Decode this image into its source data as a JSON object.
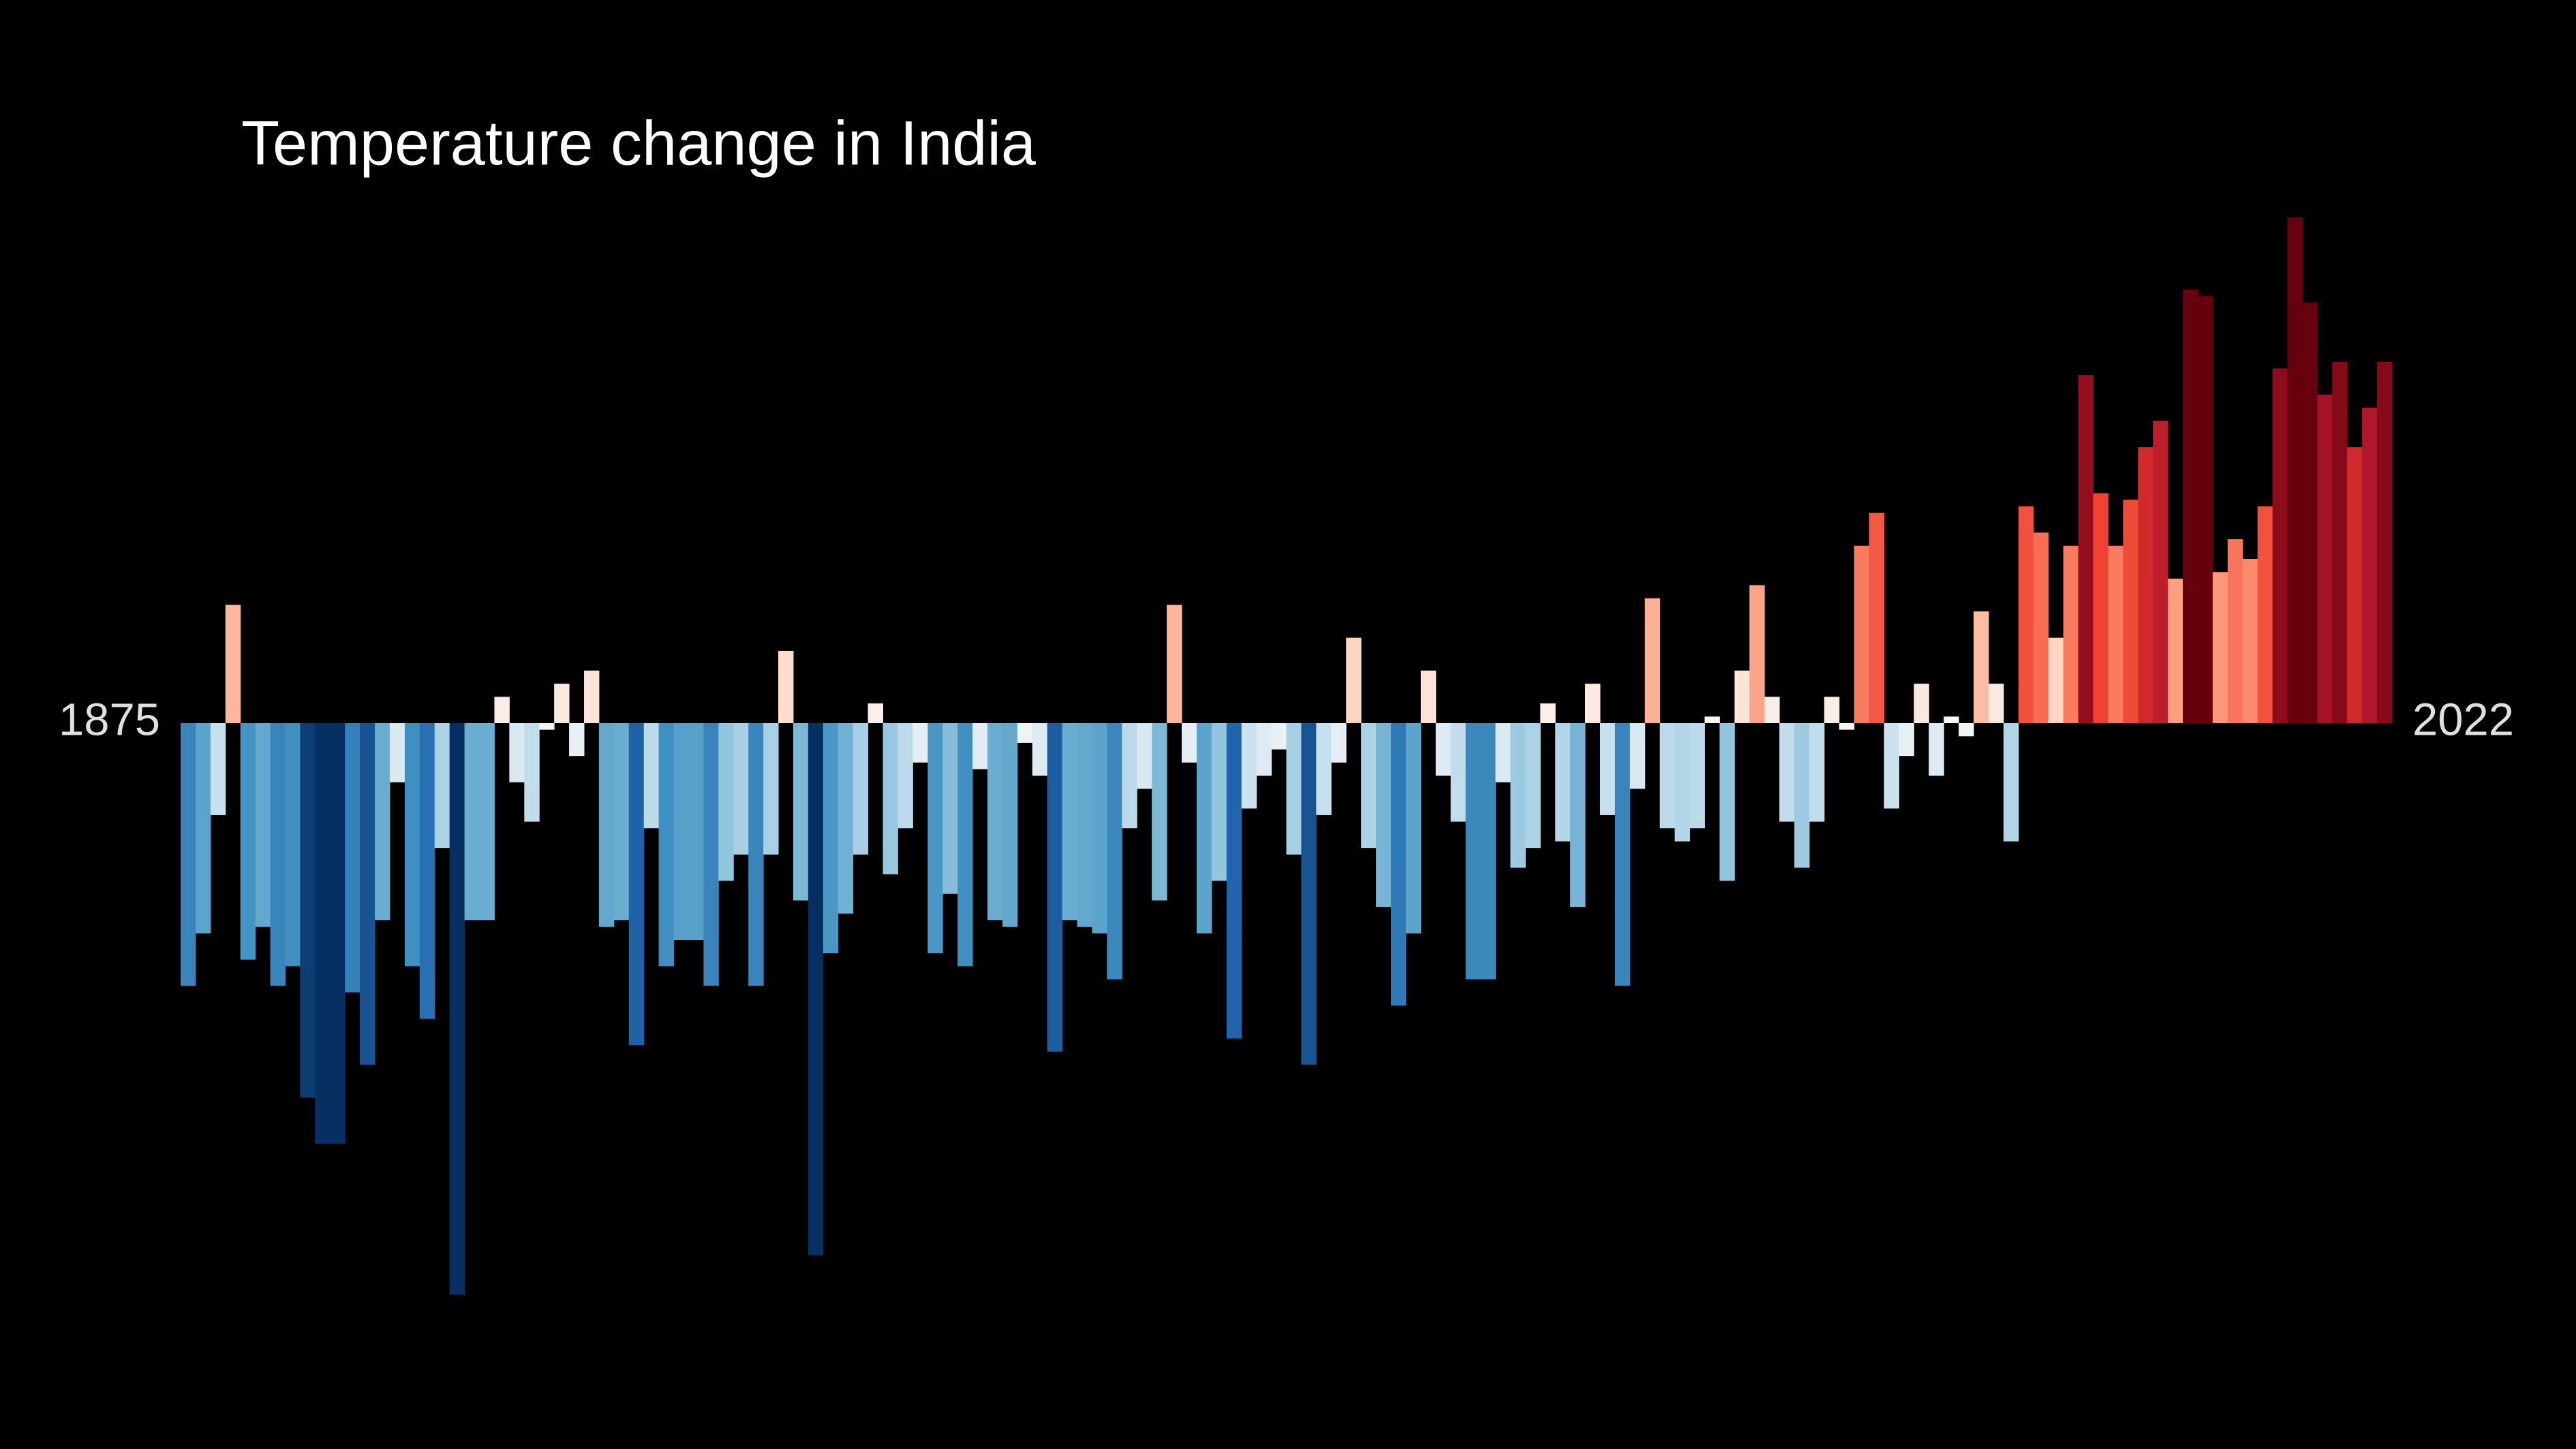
{
  "chart_data": {
    "type": "bar",
    "title": "Temperature change in India",
    "categories": [
      "1875",
      null,
      null,
      null,
      null,
      null,
      null,
      null,
      null,
      null,
      null,
      null,
      null,
      null,
      null,
      null,
      null,
      null,
      null,
      null,
      null,
      null,
      null,
      null,
      null,
      null,
      null,
      null,
      null,
      null,
      null,
      null,
      null,
      null,
      null,
      null,
      null,
      null,
      null,
      null,
      null,
      null,
      null,
      null,
      null,
      null,
      null,
      null,
      null,
      null,
      null,
      null,
      null,
      null,
      null,
      null,
      null,
      null,
      null,
      null,
      null,
      null,
      null,
      null,
      null,
      null,
      null,
      null,
      null,
      null,
      null,
      null,
      null,
      null,
      null,
      null,
      null,
      null,
      null,
      null,
      null,
      null,
      null,
      null,
      null,
      null,
      null,
      null,
      null,
      null,
      null,
      null,
      null,
      null,
      null,
      null,
      null,
      null,
      null,
      null,
      null,
      null,
      null,
      null,
      null,
      null,
      null,
      null,
      null,
      null,
      null,
      null,
      null,
      null,
      null,
      null,
      null,
      null,
      null,
      null,
      null,
      null,
      null,
      null,
      null,
      null,
      null,
      null,
      null,
      null,
      null,
      null,
      null,
      null,
      null,
      null,
      null,
      null,
      null,
      null,
      null,
      null,
      null,
      null,
      null,
      null,
      null,
      "2022"
    ],
    "values": [
      -0.4,
      -0.32,
      -0.14,
      0.18,
      -0.36,
      -0.31,
      -0.4,
      -0.37,
      -0.57,
      -0.64,
      -0.64,
      -0.41,
      -0.52,
      -0.3,
      -0.09,
      -0.37,
      -0.45,
      -0.19,
      -0.87,
      -0.3,
      -0.3,
      0.04,
      -0.09,
      -0.15,
      -0.01,
      0.06,
      -0.05,
      0.08,
      -0.31,
      -0.3,
      -0.49,
      -0.16,
      -0.37,
      -0.33,
      -0.33,
      -0.4,
      -0.24,
      -0.2,
      -0.4,
      -0.2,
      0.11,
      -0.27,
      -0.81,
      -0.35,
      -0.29,
      -0.2,
      0.03,
      -0.23,
      -0.16,
      -0.06,
      -0.35,
      -0.26,
      -0.37,
      -0.07,
      -0.3,
      -0.31,
      -0.03,
      -0.08,
      -0.5,
      -0.3,
      -0.31,
      -0.32,
      -0.39,
      -0.16,
      -0.1,
      -0.27,
      0.18,
      -0.06,
      -0.32,
      -0.24,
      -0.48,
      -0.13,
      -0.08,
      -0.04,
      -0.2,
      -0.52,
      -0.14,
      -0.06,
      0.13,
      -0.19,
      -0.28,
      -0.43,
      -0.32,
      0.08,
      -0.08,
      -0.15,
      -0.39,
      -0.39,
      -0.09,
      -0.22,
      -0.19,
      0.03,
      -0.18,
      -0.28,
      0.06,
      -0.14,
      -0.4,
      -0.1,
      0.19,
      -0.16,
      -0.18,
      -0.16,
      0.01,
      -0.24,
      0.08,
      0.21,
      0.04,
      -0.15,
      -0.22,
      -0.15,
      0.04,
      -0.01,
      0.27,
      0.32,
      -0.13,
      -0.05,
      0.06,
      -0.08,
      0.01,
      -0.02,
      0.17,
      0.06,
      -0.18,
      0.33,
      0.29,
      0.13,
      0.27,
      0.53,
      0.35,
      0.27,
      0.34,
      0.42,
      0.46,
      0.22,
      0.66,
      0.65,
      0.23,
      0.28,
      0.25,
      0.33,
      0.54,
      0.77,
      0.64,
      0.5,
      0.55,
      0.42,
      0.48,
      0.55
    ],
    "ylim": [
      -1,
      1
    ]
  }
}
